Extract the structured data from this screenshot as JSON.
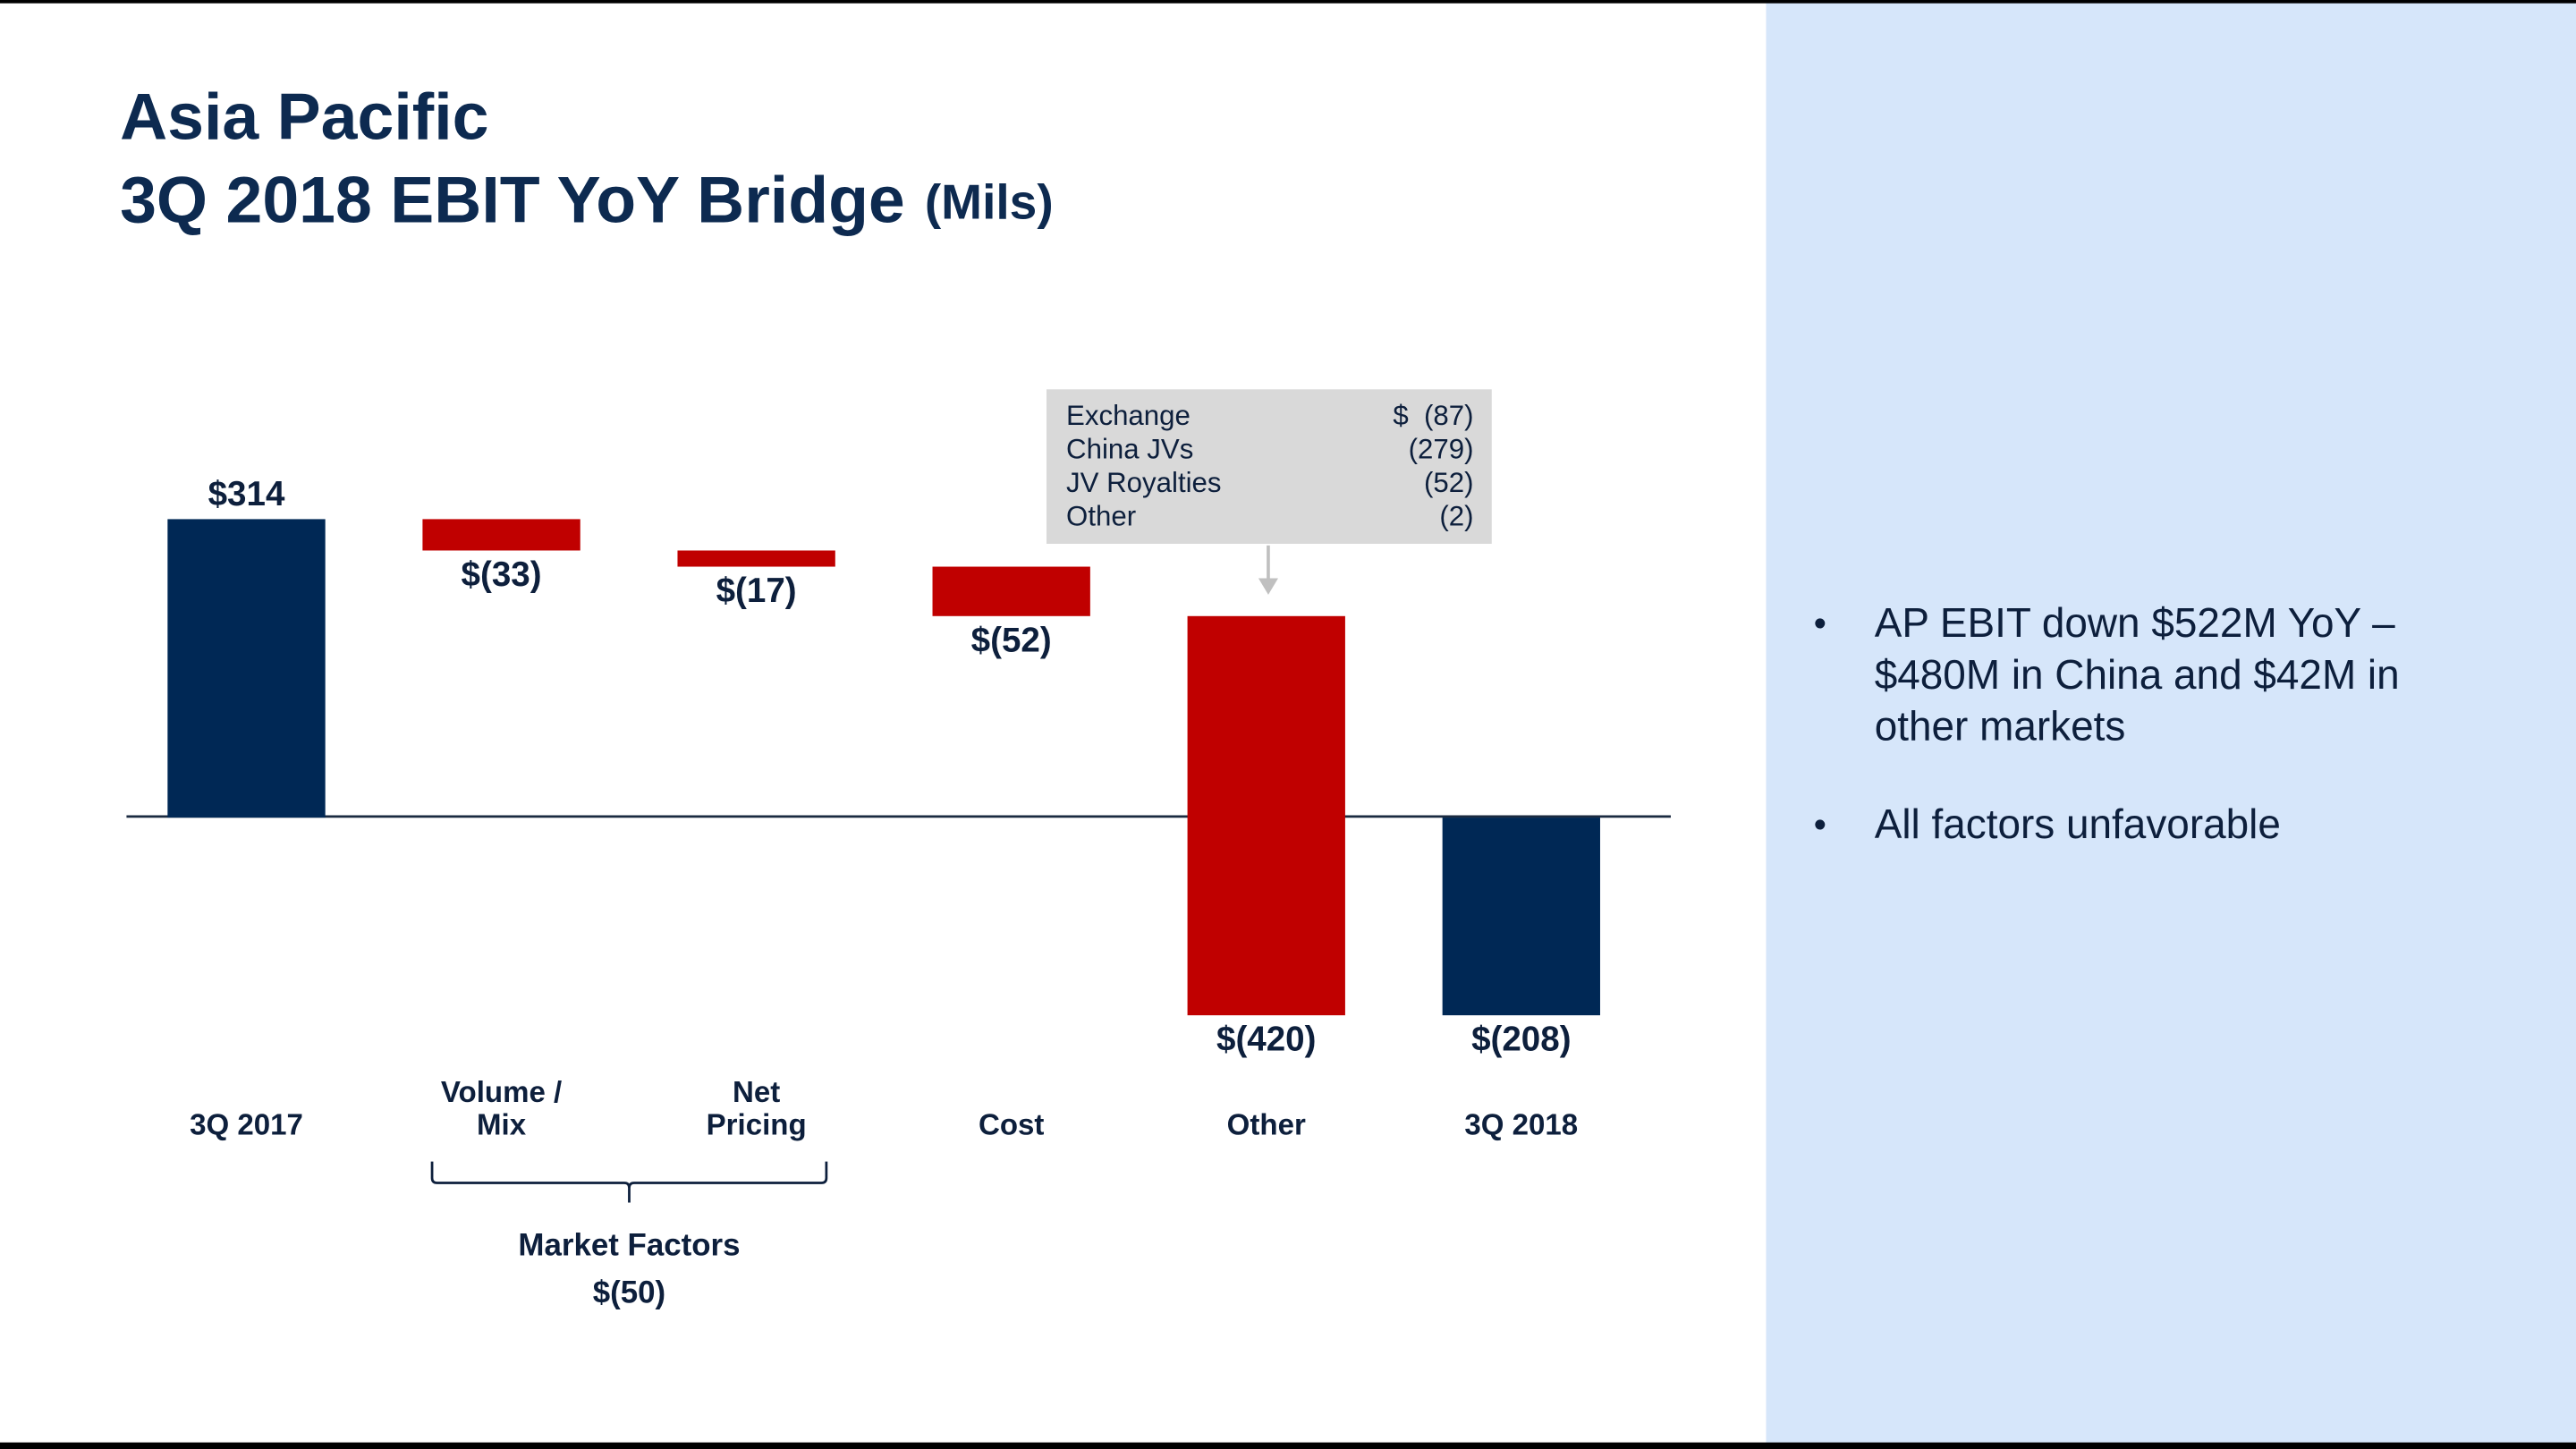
{
  "chart_data": {
    "type": "waterfall",
    "title": "Asia Pacific",
    "subtitle": "3Q 2018 EBIT YoY Bridge",
    "unit_label": "(Mils)",
    "categories": [
      [
        "3Q 2017"
      ],
      [
        "Volume /",
        "Mix"
      ],
      [
        "Net",
        "Pricing"
      ],
      [
        "Cost"
      ],
      [
        "Other"
      ],
      [
        "3Q 2018"
      ]
    ],
    "values": [
      314,
      -33,
      -17,
      -52,
      -420,
      -208
    ],
    "value_labels": [
      "$314",
      "$(33)",
      "$(17)",
      "$(52)",
      "$(420)",
      "$(208)"
    ],
    "measure": [
      "total",
      "relative",
      "relative",
      "relative",
      "relative",
      "total"
    ],
    "total_color": "#002855",
    "change_color": "#c00000",
    "annotation": {
      "rows": [
        [
          "Exchange",
          "$  (87)"
        ],
        [
          "China JVs",
          "(279)"
        ],
        [
          "JV Royalties",
          "(52)"
        ],
        [
          "Other",
          "(2)"
        ]
      ]
    },
    "group": {
      "label": "Market Factors",
      "value_label": "$(50)"
    }
  },
  "side_panel": {
    "bullets": [
      [
        "AP EBIT down $522M YoY –",
        "$480M in China and $42M in",
        "other markets"
      ],
      [
        "All factors unfavorable"
      ]
    ]
  }
}
